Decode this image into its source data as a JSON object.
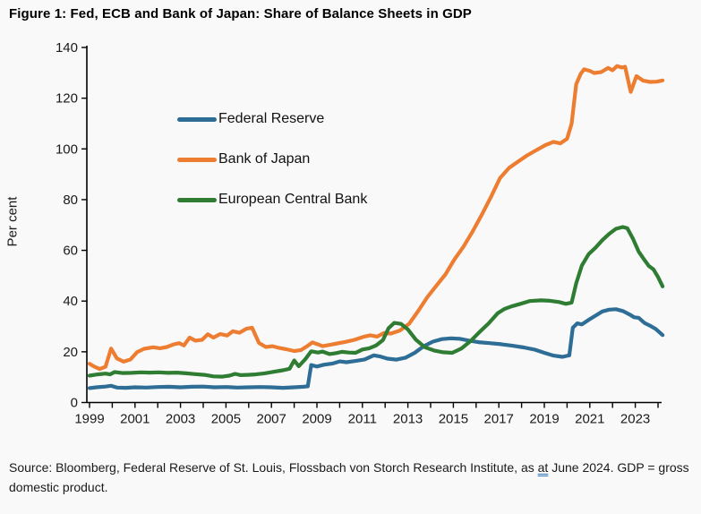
{
  "title": "Figure 1: Fed, ECB and Bank of Japan: Share of Balance Sheets in GDP",
  "source": {
    "prefix": "Source: Bloomberg, Federal Reserve of St. Louis, Flossbach von Storch Research Institute, as ",
    "underlined_word": "at",
    "suffix": " June 2024. GDP = gross domestic product."
  },
  "chart_data": {
    "type": "line",
    "title": "Figure 1: Fed, ECB and Bank of Japan: Share of Balance Sheets in GDP",
    "xlabel": "",
    "ylabel": "Per cent",
    "ylim": [
      0,
      140
    ],
    "xlim": [
      1999,
      2024.3
    ],
    "grid": false,
    "legend_position": "upper-left-inside",
    "y_ticks": [
      0,
      20,
      40,
      60,
      80,
      100,
      120,
      140
    ],
    "x_ticks": [
      1999,
      2000,
      2001,
      2002,
      2003,
      2004,
      2005,
      2006,
      2007,
      2008,
      2009,
      2010,
      2011,
      2012,
      2013,
      2014,
      2015,
      2016,
      2017,
      2018,
      2019,
      2020,
      2021,
      2022,
      2023,
      2024
    ],
    "x_tick_labels": [
      "1999",
      "2001",
      "2003",
      "2005",
      "2007",
      "2009",
      "2011",
      "2013",
      "2015",
      "2017",
      "2019",
      "2021",
      "2023"
    ],
    "series": [
      {
        "name": "Federal Reserve",
        "color": "#2d6d96",
        "points": [
          [
            1999.0,
            5.7
          ],
          [
            1999.3,
            6.0
          ],
          [
            1999.7,
            6.3
          ],
          [
            1999.95,
            6.6
          ],
          [
            2000.2,
            5.9
          ],
          [
            2000.6,
            5.8
          ],
          [
            2001.0,
            6.0
          ],
          [
            2001.5,
            5.9
          ],
          [
            2002.0,
            6.1
          ],
          [
            2002.5,
            6.2
          ],
          [
            2003.0,
            6.0
          ],
          [
            2003.5,
            6.2
          ],
          [
            2004.0,
            6.3
          ],
          [
            2004.5,
            6.0
          ],
          [
            2005.0,
            6.1
          ],
          [
            2005.5,
            5.9
          ],
          [
            2006.0,
            6.0
          ],
          [
            2006.5,
            6.1
          ],
          [
            2007.0,
            6.0
          ],
          [
            2007.5,
            5.8
          ],
          [
            2008.0,
            6.0
          ],
          [
            2008.4,
            6.2
          ],
          [
            2008.6,
            6.4
          ],
          [
            2008.75,
            14.8
          ],
          [
            2009.0,
            14.2
          ],
          [
            2009.3,
            14.9
          ],
          [
            2009.7,
            15.4
          ],
          [
            2010.0,
            16.2
          ],
          [
            2010.3,
            15.9
          ],
          [
            2010.7,
            16.4
          ],
          [
            2011.1,
            17.0
          ],
          [
            2011.5,
            18.6
          ],
          [
            2011.8,
            18.1
          ],
          [
            2012.1,
            17.3
          ],
          [
            2012.5,
            16.9
          ],
          [
            2012.9,
            17.7
          ],
          [
            2013.3,
            19.6
          ],
          [
            2013.7,
            22.2
          ],
          [
            2014.1,
            24.0
          ],
          [
            2014.5,
            25.0
          ],
          [
            2014.9,
            25.3
          ],
          [
            2015.3,
            25.1
          ],
          [
            2015.7,
            24.4
          ],
          [
            2016.1,
            23.8
          ],
          [
            2016.6,
            23.4
          ],
          [
            2017.1,
            23.0
          ],
          [
            2017.6,
            22.4
          ],
          [
            2018.1,
            21.7
          ],
          [
            2018.6,
            20.8
          ],
          [
            2019.0,
            19.6
          ],
          [
            2019.4,
            18.5
          ],
          [
            2019.8,
            18.0
          ],
          [
            2020.1,
            18.6
          ],
          [
            2020.25,
            29.5
          ],
          [
            2020.45,
            31.2
          ],
          [
            2020.65,
            30.8
          ],
          [
            2020.95,
            32.6
          ],
          [
            2021.25,
            34.2
          ],
          [
            2021.55,
            35.9
          ],
          [
            2021.85,
            36.6
          ],
          [
            2022.15,
            36.8
          ],
          [
            2022.45,
            36.1
          ],
          [
            2022.75,
            34.7
          ],
          [
            2022.95,
            33.6
          ],
          [
            2023.15,
            33.4
          ],
          [
            2023.4,
            31.4
          ],
          [
            2023.65,
            30.3
          ],
          [
            2023.9,
            29.0
          ],
          [
            2024.2,
            26.6
          ]
        ]
      },
      {
        "name": "Bank of Japan",
        "color": "#ed7d31",
        "points": [
          [
            1999.0,
            15.3
          ],
          [
            1999.2,
            14.2
          ],
          [
            1999.45,
            13.2
          ],
          [
            1999.7,
            14.1
          ],
          [
            1999.95,
            21.3
          ],
          [
            2000.2,
            17.4
          ],
          [
            2000.5,
            16.1
          ],
          [
            2000.8,
            17.0
          ],
          [
            2001.1,
            19.9
          ],
          [
            2001.4,
            21.2
          ],
          [
            2001.8,
            21.8
          ],
          [
            2002.1,
            21.4
          ],
          [
            2002.4,
            21.9
          ],
          [
            2002.7,
            22.9
          ],
          [
            2002.95,
            23.4
          ],
          [
            2003.15,
            22.5
          ],
          [
            2003.4,
            25.6
          ],
          [
            2003.65,
            24.4
          ],
          [
            2003.95,
            24.7
          ],
          [
            2004.2,
            26.9
          ],
          [
            2004.45,
            25.6
          ],
          [
            2004.75,
            27.0
          ],
          [
            2005.05,
            26.4
          ],
          [
            2005.3,
            28.1
          ],
          [
            2005.6,
            27.5
          ],
          [
            2005.9,
            29.1
          ],
          [
            2006.15,
            29.5
          ],
          [
            2006.45,
            23.5
          ],
          [
            2006.75,
            21.9
          ],
          [
            2007.05,
            22.2
          ],
          [
            2007.35,
            21.5
          ],
          [
            2007.65,
            21.0
          ],
          [
            2008.0,
            20.3
          ],
          [
            2008.3,
            20.7
          ],
          [
            2008.6,
            22.4
          ],
          [
            2008.8,
            23.7
          ],
          [
            2009.05,
            22.9
          ],
          [
            2009.25,
            22.2
          ],
          [
            2009.55,
            22.7
          ],
          [
            2009.9,
            23.3
          ],
          [
            2010.25,
            23.9
          ],
          [
            2010.65,
            24.7
          ],
          [
            2011.05,
            25.9
          ],
          [
            2011.35,
            26.5
          ],
          [
            2011.65,
            26.0
          ],
          [
            2011.95,
            27.4
          ],
          [
            2012.25,
            27.2
          ],
          [
            2012.65,
            28.4
          ],
          [
            2013.05,
            31.0
          ],
          [
            2013.45,
            36.0
          ],
          [
            2013.85,
            41.5
          ],
          [
            2014.25,
            46.0
          ],
          [
            2014.65,
            50.5
          ],
          [
            2015.05,
            56.5
          ],
          [
            2015.45,
            61.5
          ],
          [
            2015.85,
            67.5
          ],
          [
            2016.25,
            74.0
          ],
          [
            2016.65,
            81.0
          ],
          [
            2017.05,
            88.5
          ],
          [
            2017.45,
            92.5
          ],
          [
            2017.85,
            95.0
          ],
          [
            2018.25,
            97.5
          ],
          [
            2018.65,
            99.5
          ],
          [
            2019.05,
            101.5
          ],
          [
            2019.4,
            102.8
          ],
          [
            2019.7,
            102.2
          ],
          [
            2020.0,
            104.0
          ],
          [
            2020.2,
            110.0
          ],
          [
            2020.4,
            125.5
          ],
          [
            2020.6,
            129.6
          ],
          [
            2020.75,
            131.4
          ],
          [
            2021.0,
            130.8
          ],
          [
            2021.2,
            129.9
          ],
          [
            2021.5,
            130.3
          ],
          [
            2021.8,
            131.9
          ],
          [
            2022.0,
            131.0
          ],
          [
            2022.2,
            132.7
          ],
          [
            2022.4,
            132.1
          ],
          [
            2022.55,
            132.4
          ],
          [
            2022.8,
            122.5
          ],
          [
            2023.05,
            128.7
          ],
          [
            2023.35,
            126.9
          ],
          [
            2023.65,
            126.4
          ],
          [
            2023.95,
            126.5
          ],
          [
            2024.2,
            127.0
          ]
        ]
      },
      {
        "name": "European Central Bank",
        "color": "#2f7d33",
        "points": [
          [
            1999.0,
            10.6
          ],
          [
            1999.35,
            11.1
          ],
          [
            1999.7,
            11.4
          ],
          [
            1999.9,
            11.1
          ],
          [
            2000.1,
            12.0
          ],
          [
            2000.45,
            11.6
          ],
          [
            2000.85,
            11.7
          ],
          [
            2001.25,
            11.9
          ],
          [
            2001.65,
            11.8
          ],
          [
            2002.05,
            11.9
          ],
          [
            2002.45,
            11.7
          ],
          [
            2002.85,
            11.8
          ],
          [
            2003.25,
            11.5
          ],
          [
            2003.65,
            11.2
          ],
          [
            2004.05,
            10.9
          ],
          [
            2004.45,
            10.3
          ],
          [
            2004.85,
            10.2
          ],
          [
            2005.15,
            10.6
          ],
          [
            2005.4,
            11.3
          ],
          [
            2005.65,
            10.8
          ],
          [
            2005.95,
            10.9
          ],
          [
            2006.3,
            11.1
          ],
          [
            2006.7,
            11.5
          ],
          [
            2007.1,
            12.1
          ],
          [
            2007.5,
            12.7
          ],
          [
            2007.8,
            13.3
          ],
          [
            2008.0,
            16.6
          ],
          [
            2008.2,
            14.3
          ],
          [
            2008.5,
            17.2
          ],
          [
            2008.75,
            20.2
          ],
          [
            2009.05,
            19.7
          ],
          [
            2009.25,
            20.1
          ],
          [
            2009.55,
            19.1
          ],
          [
            2009.85,
            19.5
          ],
          [
            2010.1,
            20.0
          ],
          [
            2010.4,
            19.7
          ],
          [
            2010.7,
            19.6
          ],
          [
            2011.0,
            20.9
          ],
          [
            2011.3,
            21.4
          ],
          [
            2011.6,
            22.5
          ],
          [
            2011.9,
            24.6
          ],
          [
            2012.15,
            29.3
          ],
          [
            2012.4,
            31.4
          ],
          [
            2012.7,
            31.0
          ],
          [
            2013.0,
            28.8
          ],
          [
            2013.35,
            24.8
          ],
          [
            2013.75,
            21.8
          ],
          [
            2014.15,
            20.5
          ],
          [
            2014.55,
            19.8
          ],
          [
            2014.95,
            19.6
          ],
          [
            2015.35,
            21.3
          ],
          [
            2015.75,
            24.2
          ],
          [
            2016.15,
            27.8
          ],
          [
            2016.55,
            31.2
          ],
          [
            2016.95,
            35.2
          ],
          [
            2017.25,
            36.9
          ],
          [
            2017.55,
            37.9
          ],
          [
            2017.95,
            38.9
          ],
          [
            2018.35,
            40.0
          ],
          [
            2018.85,
            40.3
          ],
          [
            2019.25,
            40.1
          ],
          [
            2019.65,
            39.6
          ],
          [
            2019.95,
            38.9
          ],
          [
            2020.2,
            39.4
          ],
          [
            2020.4,
            47.0
          ],
          [
            2020.65,
            54.0
          ],
          [
            2020.95,
            58.5
          ],
          [
            2021.25,
            61.0
          ],
          [
            2021.55,
            64.0
          ],
          [
            2021.85,
            66.5
          ],
          [
            2022.15,
            68.5
          ],
          [
            2022.45,
            69.2
          ],
          [
            2022.65,
            68.7
          ],
          [
            2022.9,
            64.5
          ],
          [
            2023.15,
            59.5
          ],
          [
            2023.4,
            56.2
          ],
          [
            2023.6,
            53.8
          ],
          [
            2023.8,
            52.5
          ],
          [
            2024.0,
            49.5
          ],
          [
            2024.2,
            45.8
          ]
        ]
      }
    ]
  }
}
